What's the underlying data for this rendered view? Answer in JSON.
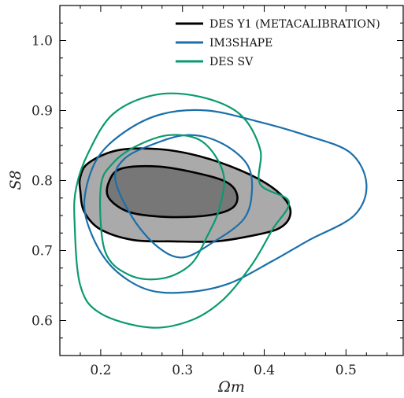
{
  "chart_data": {
    "type": "contour",
    "xlabel": "Ωm",
    "ylabel": "S8",
    "xlim": [
      0.15,
      0.57
    ],
    "ylim": [
      0.55,
      1.05
    ],
    "xticks": [
      "0.2",
      "0.3",
      "0.4",
      "0.5"
    ],
    "yticks": [
      "0.6",
      "0.7",
      "0.8",
      "0.9",
      "1.0"
    ],
    "legend_position": "top-right",
    "grid": false,
    "series": [
      {
        "name": "DES Y1 (METACALIBRATION)",
        "color": "#000000",
        "filled": true,
        "fill_colors": [
          "#aaaaaa",
          "#777777"
        ],
        "contours": [
          {
            "level": "95%",
            "points": [
              [
                0.175,
                0.785
              ],
              [
                0.18,
                0.755
              ],
              [
                0.2,
                0.73
              ],
              [
                0.24,
                0.715
              ],
              [
                0.29,
                0.713
              ],
              [
                0.34,
                0.713
              ],
              [
                0.38,
                0.72
              ],
              [
                0.415,
                0.73
              ],
              [
                0.43,
                0.745
              ],
              [
                0.43,
                0.765
              ],
              [
                0.41,
                0.79
              ],
              [
                0.37,
                0.815
              ],
              [
                0.32,
                0.835
              ],
              [
                0.27,
                0.845
              ],
              [
                0.22,
                0.843
              ],
              [
                0.185,
                0.825
              ],
              [
                0.175,
                0.805
              ]
            ]
          },
          {
            "level": "68%",
            "points": [
              [
                0.21,
                0.775
              ],
              [
                0.235,
                0.755
              ],
              [
                0.28,
                0.748
              ],
              [
                0.33,
                0.75
              ],
              [
                0.36,
                0.76
              ],
              [
                0.367,
                0.778
              ],
              [
                0.355,
                0.797
              ],
              [
                0.32,
                0.81
              ],
              [
                0.27,
                0.82
              ],
              [
                0.225,
                0.817
              ],
              [
                0.21,
                0.798
              ]
            ]
          }
        ]
      },
      {
        "name": "IM3SHAPE",
        "color": "#1a6faa",
        "filled": false,
        "contours": [
          {
            "level": "95%",
            "points": [
              [
                0.18,
                0.77
              ],
              [
                0.19,
                0.72
              ],
              [
                0.215,
                0.675
              ],
              [
                0.255,
                0.645
              ],
              [
                0.3,
                0.64
              ],
              [
                0.355,
                0.652
              ],
              [
                0.41,
                0.685
              ],
              [
                0.455,
                0.715
              ],
              [
                0.51,
                0.75
              ],
              [
                0.525,
                0.795
              ],
              [
                0.505,
                0.84
              ],
              [
                0.45,
                0.865
              ],
              [
                0.39,
                0.885
              ],
              [
                0.33,
                0.9
              ],
              [
                0.275,
                0.895
              ],
              [
                0.23,
                0.87
              ],
              [
                0.195,
                0.83
              ]
            ]
          },
          {
            "level": "68%",
            "points": [
              [
                0.218,
                0.8
              ],
              [
                0.24,
                0.745
              ],
              [
                0.27,
                0.705
              ],
              [
                0.3,
                0.69
              ],
              [
                0.335,
                0.71
              ],
              [
                0.375,
                0.745
              ],
              [
                0.385,
                0.787
              ],
              [
                0.378,
                0.825
              ],
              [
                0.345,
                0.855
              ],
              [
                0.305,
                0.865
              ],
              [
                0.26,
                0.85
              ],
              [
                0.228,
                0.83
              ]
            ]
          }
        ]
      },
      {
        "name": "DES SV",
        "color": "#0a9a70",
        "filled": false,
        "contours": [
          {
            "level": "95%",
            "points": [
              [
                0.168,
                0.74
              ],
              [
                0.175,
                0.65
              ],
              [
                0.2,
                0.61
              ],
              [
                0.26,
                0.59
              ],
              [
                0.31,
                0.6
              ],
              [
                0.35,
                0.63
              ],
              [
                0.385,
                0.68
              ],
              [
                0.41,
                0.73
              ],
              [
                0.43,
                0.77
              ],
              [
                0.395,
                0.795
              ],
              [
                0.395,
                0.845
              ],
              [
                0.37,
                0.895
              ],
              [
                0.32,
                0.92
              ],
              [
                0.265,
                0.922
              ],
              [
                0.215,
                0.895
              ],
              [
                0.185,
                0.84
              ],
              [
                0.17,
                0.79
              ]
            ]
          },
          {
            "level": "68%",
            "points": [
              [
                0.2,
                0.79
              ],
              [
                0.205,
                0.7
              ],
              [
                0.235,
                0.665
              ],
              [
                0.275,
                0.66
              ],
              [
                0.31,
                0.68
              ],
              [
                0.33,
                0.72
              ],
              [
                0.345,
                0.76
              ],
              [
                0.35,
                0.81
              ],
              [
                0.325,
                0.855
              ],
              [
                0.285,
                0.865
              ],
              [
                0.245,
                0.85
              ],
              [
                0.215,
                0.825
              ]
            ]
          }
        ]
      }
    ]
  }
}
